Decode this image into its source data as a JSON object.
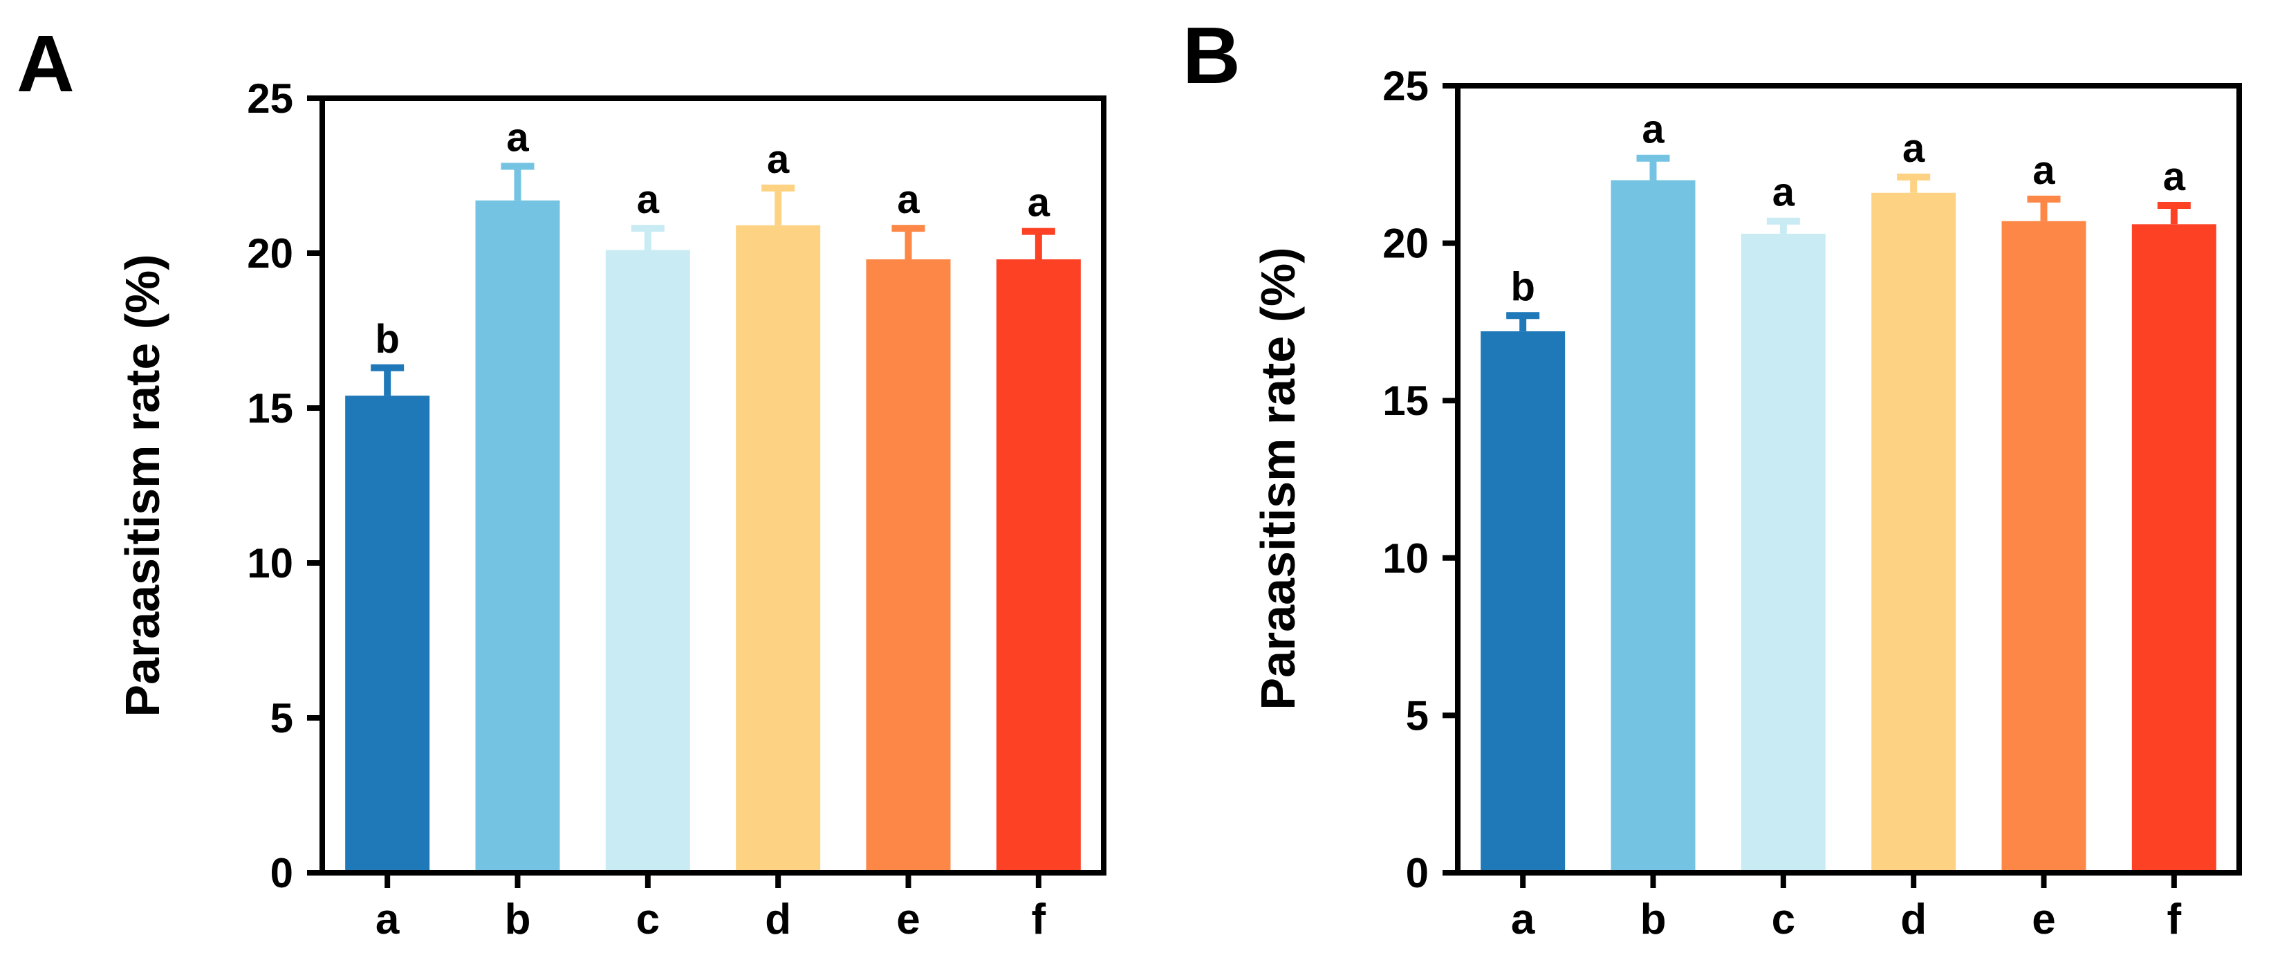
{
  "figure": {
    "panels": [
      "A",
      "B"
    ]
  },
  "chart_data": [
    {
      "panel": "A",
      "type": "bar",
      "title": "",
      "xlabel": "",
      "ylabel": "Paraasitism rate (%)",
      "ylim": [
        0,
        25
      ],
      "yticks": [
        "0",
        "5",
        "10",
        "15",
        "20",
        "25"
      ],
      "categories": [
        "a",
        "b",
        "c",
        "d",
        "e",
        "f"
      ],
      "values": [
        15.4,
        21.7,
        20.1,
        20.9,
        19.8,
        19.8
      ],
      "errors": [
        0.9,
        1.1,
        0.7,
        1.2,
        1.0,
        0.9
      ],
      "significance": [
        "b",
        "a",
        "a",
        "a",
        "a",
        "a"
      ],
      "colors": [
        "#1f78b8",
        "#74c3e2",
        "#c9ebf4",
        "#fdd383",
        "#fd8747",
        "#fc4125"
      ],
      "grid": false
    },
    {
      "panel": "B",
      "type": "bar",
      "title": "",
      "xlabel": "",
      "ylabel": "Paraasitism rate (%)",
      "ylim": [
        0,
        25
      ],
      "yticks": [
        "0",
        "5",
        "10",
        "15",
        "20",
        "25"
      ],
      "categories": [
        "a",
        "b",
        "c",
        "d",
        "e",
        "f"
      ],
      "values": [
        17.2,
        22.0,
        20.3,
        21.6,
        20.7,
        20.6
      ],
      "errors": [
        0.5,
        0.7,
        0.4,
        0.5,
        0.7,
        0.6
      ],
      "significance": [
        "b",
        "a",
        "a",
        "a",
        "a",
        "a"
      ],
      "colors": [
        "#1f78b8",
        "#74c3e2",
        "#c9ebf4",
        "#fdd383",
        "#fd8747",
        "#fc4125"
      ],
      "grid": false
    }
  ]
}
